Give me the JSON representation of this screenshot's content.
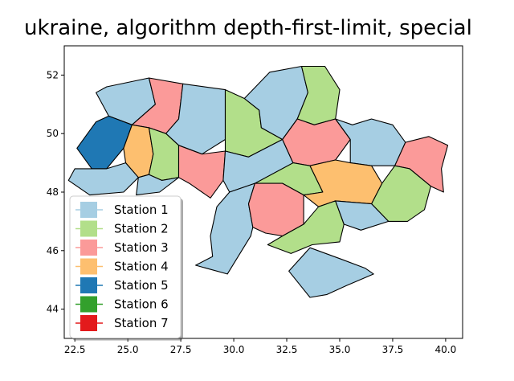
{
  "chart_data": {
    "type": "map",
    "title": "ukraine, algorithm depth-first-limit, special",
    "xlabel": "",
    "ylabel": "",
    "xlim": [
      22.0,
      40.8
    ],
    "ylim": [
      43.0,
      53.0
    ],
    "xticks": [
      22.5,
      25.0,
      27.5,
      30.0,
      32.5,
      35.0,
      37.5,
      40.0
    ],
    "xtick_labels": [
      "22.5",
      "25.0",
      "27.5",
      "30.0",
      "32.5",
      "35.0",
      "37.5",
      "40.0"
    ],
    "yticks": [
      44,
      46,
      48,
      50,
      52
    ],
    "ytick_labels": [
      "44",
      "46",
      "48",
      "50",
      "52"
    ],
    "grid": false,
    "legend_position": "lower-left",
    "legend": [
      {
        "name": "Station 1",
        "color": "#a6cee3"
      },
      {
        "name": "Station 2",
        "color": "#b2df8a"
      },
      {
        "name": "Station 3",
        "color": "#fb9a99"
      },
      {
        "name": "Station 4",
        "color": "#fdbf6f"
      },
      {
        "name": "Station 5",
        "color": "#1f78b4"
      },
      {
        "name": "Station 6",
        "color": "#33a02c"
      },
      {
        "name": "Station 7",
        "color": "#e31a1c"
      }
    ],
    "regions": [
      {
        "station": 1,
        "outline": [
          [
            24.0,
            51.6
          ],
          [
            26.0,
            51.9
          ],
          [
            26.3,
            51.0
          ],
          [
            25.2,
            50.3
          ],
          [
            24.1,
            50.6
          ],
          [
            23.5,
            51.4
          ]
        ]
      },
      {
        "station": 3,
        "outline": [
          [
            26.0,
            51.9
          ],
          [
            27.6,
            51.7
          ],
          [
            27.4,
            50.5
          ],
          [
            26.8,
            50.0
          ],
          [
            26.0,
            50.2
          ],
          [
            25.2,
            50.3
          ],
          [
            26.3,
            51.0
          ]
        ]
      },
      {
        "station": 1,
        "outline": [
          [
            27.6,
            51.7
          ],
          [
            29.6,
            51.5
          ],
          [
            29.6,
            49.8
          ],
          [
            28.5,
            49.3
          ],
          [
            27.4,
            49.6
          ],
          [
            26.8,
            50.0
          ],
          [
            27.4,
            50.5
          ]
        ]
      },
      {
        "station": 2,
        "outline": [
          [
            29.6,
            51.5
          ],
          [
            30.5,
            51.2
          ],
          [
            31.2,
            50.8
          ],
          [
            31.3,
            50.2
          ],
          [
            32.3,
            49.8
          ],
          [
            30.7,
            49.2
          ],
          [
            29.6,
            49.4
          ],
          [
            29.6,
            49.8
          ]
        ]
      },
      {
        "station": 1,
        "outline": [
          [
            30.5,
            51.2
          ],
          [
            31.7,
            52.1
          ],
          [
            33.2,
            52.3
          ],
          [
            33.5,
            51.4
          ],
          [
            33.0,
            50.5
          ],
          [
            32.3,
            49.8
          ],
          [
            31.3,
            50.2
          ],
          [
            31.2,
            50.8
          ]
        ]
      },
      {
        "station": 2,
        "outline": [
          [
            33.2,
            52.3
          ],
          [
            34.3,
            52.3
          ],
          [
            35.0,
            51.5
          ],
          [
            34.8,
            50.5
          ],
          [
            33.8,
            50.3
          ],
          [
            33.0,
            50.5
          ],
          [
            33.5,
            51.4
          ]
        ]
      },
      {
        "station": 5,
        "outline": [
          [
            22.6,
            49.5
          ],
          [
            23.5,
            50.4
          ],
          [
            24.1,
            50.6
          ],
          [
            25.2,
            50.3
          ],
          [
            24.8,
            49.5
          ],
          [
            24.0,
            48.8
          ],
          [
            23.3,
            48.8
          ]
        ]
      },
      {
        "station": 4,
        "outline": [
          [
            24.8,
            49.5
          ],
          [
            25.2,
            50.3
          ],
          [
            26.0,
            50.2
          ],
          [
            26.2,
            49.3
          ],
          [
            26.0,
            48.6
          ],
          [
            25.5,
            48.5
          ],
          [
            24.9,
            49.0
          ]
        ]
      },
      {
        "station": 2,
        "outline": [
          [
            26.0,
            50.2
          ],
          [
            26.8,
            50.0
          ],
          [
            27.4,
            49.6
          ],
          [
            27.4,
            48.5
          ],
          [
            26.6,
            48.4
          ],
          [
            26.0,
            48.6
          ],
          [
            26.2,
            49.3
          ]
        ]
      },
      {
        "station": 3,
        "outline": [
          [
            27.4,
            49.6
          ],
          [
            28.5,
            49.3
          ],
          [
            29.6,
            49.4
          ],
          [
            29.5,
            48.4
          ],
          [
            28.9,
            47.8
          ],
          [
            27.9,
            48.3
          ],
          [
            27.4,
            48.5
          ]
        ]
      },
      {
        "station": 1,
        "outline": [
          [
            29.6,
            49.4
          ],
          [
            30.7,
            49.2
          ],
          [
            32.3,
            49.8
          ],
          [
            32.8,
            49.0
          ],
          [
            32.3,
            48.3
          ],
          [
            31.0,
            48.3
          ],
          [
            29.8,
            48.0
          ],
          [
            29.5,
            48.4
          ]
        ]
      },
      {
        "station": 3,
        "outline": [
          [
            32.3,
            49.8
          ],
          [
            33.0,
            50.5
          ],
          [
            33.8,
            50.3
          ],
          [
            34.8,
            50.5
          ],
          [
            35.5,
            49.8
          ],
          [
            34.8,
            49.1
          ],
          [
            33.6,
            48.9
          ],
          [
            32.8,
            49.0
          ]
        ]
      },
      {
        "station": 1,
        "outline": [
          [
            34.8,
            50.5
          ],
          [
            35.6,
            50.3
          ],
          [
            36.5,
            50.5
          ],
          [
            37.5,
            50.3
          ],
          [
            38.1,
            49.7
          ],
          [
            37.6,
            48.9
          ],
          [
            36.5,
            48.9
          ],
          [
            35.5,
            49.0
          ],
          [
            35.5,
            49.8
          ]
        ]
      },
      {
        "station": 3,
        "outline": [
          [
            38.1,
            49.7
          ],
          [
            39.2,
            49.9
          ],
          [
            40.1,
            49.6
          ],
          [
            39.8,
            48.8
          ],
          [
            39.9,
            48.0
          ],
          [
            39.3,
            48.2
          ],
          [
            38.3,
            48.8
          ],
          [
            37.6,
            48.9
          ]
        ]
      },
      {
        "station": 2,
        "outline": [
          [
            31.0,
            48.3
          ],
          [
            32.3,
            48.3
          ],
          [
            33.3,
            47.9
          ],
          [
            34.2,
            48.0
          ],
          [
            33.6,
            48.9
          ],
          [
            32.8,
            49.0
          ]
        ]
      },
      {
        "station": 4,
        "outline": [
          [
            33.6,
            48.9
          ],
          [
            34.8,
            49.1
          ],
          [
            35.5,
            49.0
          ],
          [
            36.5,
            48.9
          ],
          [
            37.0,
            48.3
          ],
          [
            36.5,
            47.6
          ],
          [
            34.8,
            47.7
          ],
          [
            34.0,
            47.5
          ],
          [
            33.3,
            47.9
          ],
          [
            34.2,
            48.0
          ]
        ]
      },
      {
        "station": 2,
        "outline": [
          [
            37.6,
            48.9
          ],
          [
            38.3,
            48.8
          ],
          [
            39.3,
            48.2
          ],
          [
            39.0,
            47.4
          ],
          [
            38.2,
            47.0
          ],
          [
            37.3,
            47.0
          ],
          [
            36.5,
            47.6
          ],
          [
            37.0,
            48.3
          ]
        ]
      },
      {
        "station": 1,
        "outline": [
          [
            23.2,
            47.9
          ],
          [
            22.2,
            48.4
          ],
          [
            22.5,
            48.8
          ],
          [
            23.3,
            48.8
          ],
          [
            24.0,
            48.8
          ],
          [
            24.9,
            49.0
          ],
          [
            25.5,
            48.5
          ],
          [
            24.8,
            48.0
          ]
        ]
      },
      {
        "station": 1,
        "outline": [
          [
            25.5,
            48.5
          ],
          [
            26.0,
            48.6
          ],
          [
            26.6,
            48.4
          ],
          [
            27.4,
            48.5
          ],
          [
            26.5,
            48.0
          ],
          [
            25.4,
            47.9
          ]
        ]
      },
      {
        "station": 1,
        "outline": [
          [
            29.8,
            48.0
          ],
          [
            29.2,
            47.5
          ],
          [
            28.9,
            46.5
          ],
          [
            29.0,
            45.8
          ],
          [
            28.2,
            45.5
          ],
          [
            29.7,
            45.2
          ],
          [
            30.8,
            46.5
          ],
          [
            30.9,
            46.8
          ],
          [
            30.7,
            47.6
          ],
          [
            31.0,
            48.3
          ]
        ]
      },
      {
        "station": 3,
        "outline": [
          [
            31.0,
            48.3
          ],
          [
            30.7,
            47.6
          ],
          [
            30.9,
            46.8
          ],
          [
            31.5,
            46.6
          ],
          [
            32.3,
            46.5
          ],
          [
            33.3,
            46.9
          ],
          [
            33.3,
            47.9
          ],
          [
            32.3,
            48.3
          ]
        ]
      },
      {
        "station": 2,
        "outline": [
          [
            32.3,
            46.5
          ],
          [
            31.6,
            46.2
          ],
          [
            32.7,
            45.9
          ],
          [
            33.7,
            46.2
          ],
          [
            35.0,
            46.3
          ],
          [
            35.2,
            46.9
          ],
          [
            34.8,
            47.7
          ],
          [
            34.0,
            47.5
          ],
          [
            33.3,
            46.9
          ]
        ]
      },
      {
        "station": 1,
        "outline": [
          [
            34.8,
            47.7
          ],
          [
            36.5,
            47.6
          ],
          [
            37.3,
            47.0
          ],
          [
            36.0,
            46.7
          ],
          [
            35.2,
            46.9
          ]
        ]
      },
      {
        "station": 1,
        "outline": [
          [
            33.6,
            46.1
          ],
          [
            35.1,
            45.7
          ],
          [
            36.2,
            45.4
          ],
          [
            36.6,
            45.2
          ],
          [
            35.3,
            44.8
          ],
          [
            34.4,
            44.5
          ],
          [
            33.6,
            44.4
          ],
          [
            32.6,
            45.3
          ]
        ]
      }
    ]
  }
}
